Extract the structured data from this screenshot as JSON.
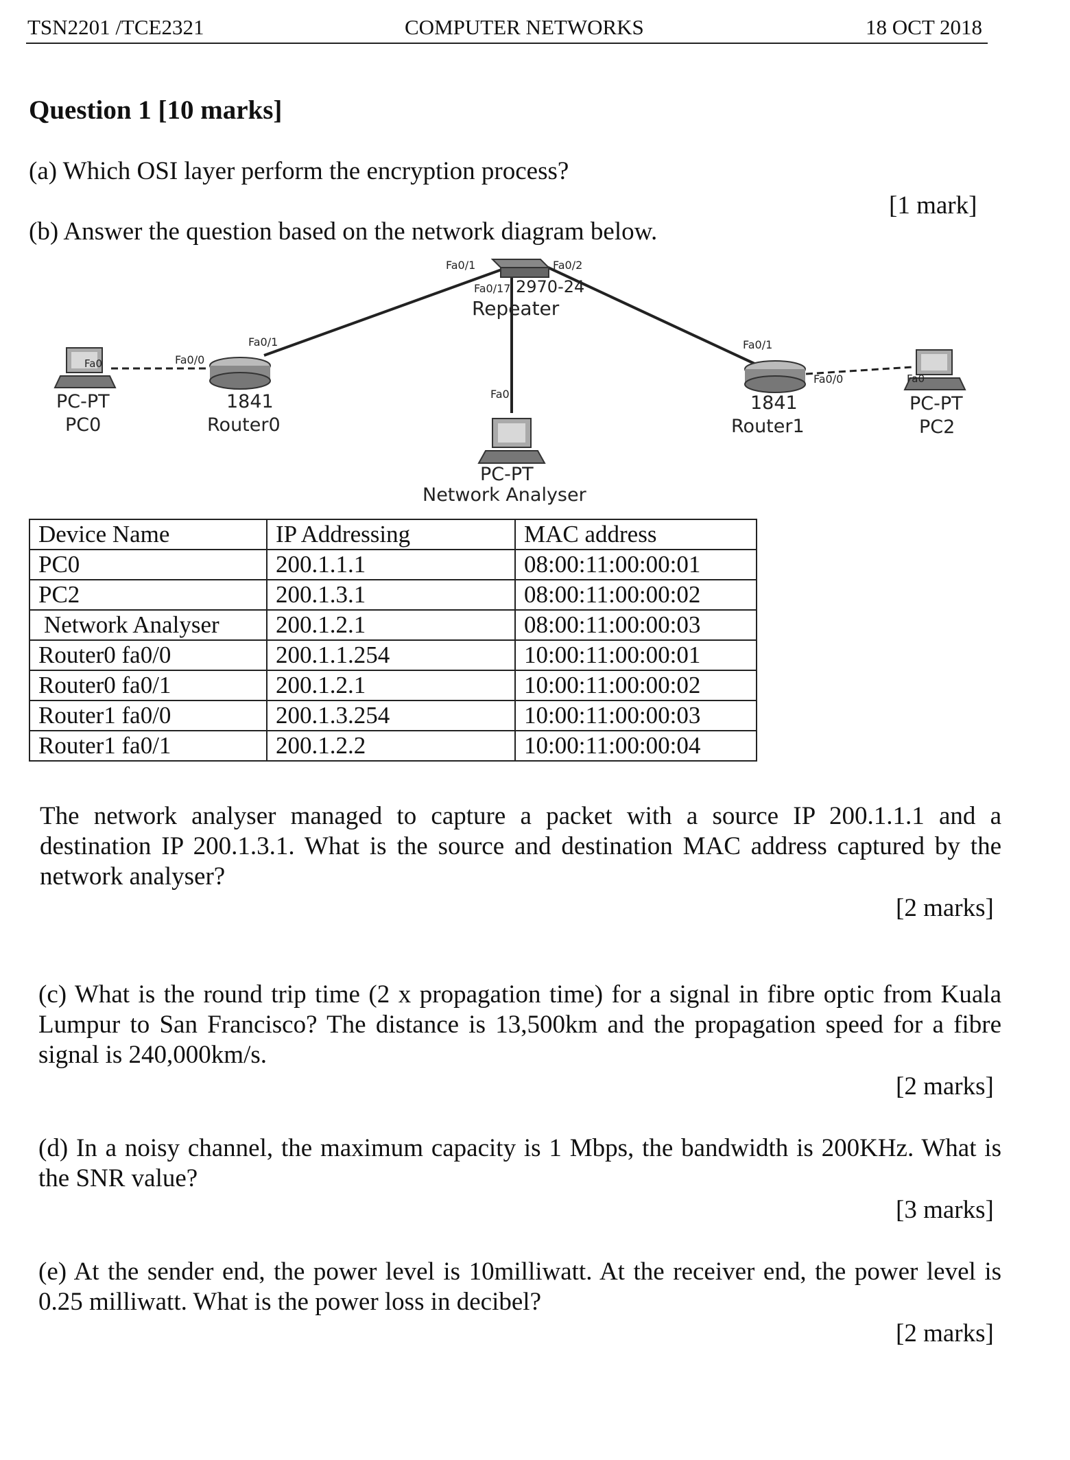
{
  "header": {
    "course_code": "TSN2201 /TCE2321",
    "subject": "COMPUTER NETWORKS",
    "date": "18 OCT 2018"
  },
  "question": {
    "title": "Question 1 [10 marks]",
    "a": {
      "text": "(a) Which OSI layer perform the encryption process?",
      "marks": "[1 mark]"
    },
    "b": {
      "text": "(b)   Answer the question based on the network diagram below.",
      "question_text": "The network analyser managed to capture a packet with a source IP 200.1.1.1 and a destination IP 200.1.3.1. What is the source and destination MAC address captured by the network analyser?",
      "marks": "[2 marks]"
    },
    "c": {
      "text": "(c) What is the round trip time (2 x propagation time) for a signal in fibre optic from Kuala Lumpur to San Francisco? The distance is 13,500km and the propagation speed for a fibre signal is 240,000km/s.",
      "marks": "[2 marks]"
    },
    "d": {
      "text": "(d) In a noisy channel, the maximum capacity is 1 Mbps, the bandwidth is 200KHz. What is the SNR value?",
      "marks": "[3 marks]"
    },
    "e": {
      "text": "(e) At the sender end, the power level is 10milliwatt. At the receiver end, the power level is 0.25 milliwatt. What is the power loss in decibel?",
      "marks": "[2 marks]"
    }
  },
  "diagram": {
    "pc0": {
      "type": "PC-PT",
      "name": "PC0",
      "port": "Fa0"
    },
    "router0": {
      "model": "1841",
      "name": "Router0",
      "port_left": "Fa0/0",
      "port_right": "Fa0/1"
    },
    "repeater": {
      "model_text": "2970-24",
      "name": "Repeater",
      "port_1": "Fa0/1",
      "port_2": "Fa0/2",
      "port_17": "Fa0/17"
    },
    "analyser": {
      "type": "PC-PT",
      "name": "Network Analyser",
      "port": "Fa0"
    },
    "router1": {
      "model": "1841",
      "name": "Router1",
      "port_left": "Fa0/1",
      "port_right": "Fa0/0"
    },
    "pc2": {
      "type": "PC-PT",
      "name": "PC2",
      "port": "Fa0"
    }
  },
  "table": {
    "headers": [
      "Device Name",
      "IP Addressing",
      "MAC address"
    ],
    "rows": [
      [
        "PC0",
        "200.1.1.1",
        "08:00:11:00:00:01"
      ],
      [
        "PC2",
        "200.1.3.1",
        "08:00:11:00:00:02"
      ],
      [
        "Network Analyser",
        "200.1.2.1",
        "08:00:11:00:00:03"
      ],
      [
        "Router0 fa0/0",
        "200.1.1.254",
        "10:00:11:00:00:01"
      ],
      [
        "Router0 fa0/1",
        "200.1.2.1",
        "10:00:11:00:00:02"
      ],
      [
        "Router1 fa0/0",
        "200.1.3.254",
        "10:00:11:00:00:03"
      ],
      [
        "Router1 fa0/1",
        "200.1.2.2",
        "10:00:11:00:00:04"
      ]
    ]
  }
}
